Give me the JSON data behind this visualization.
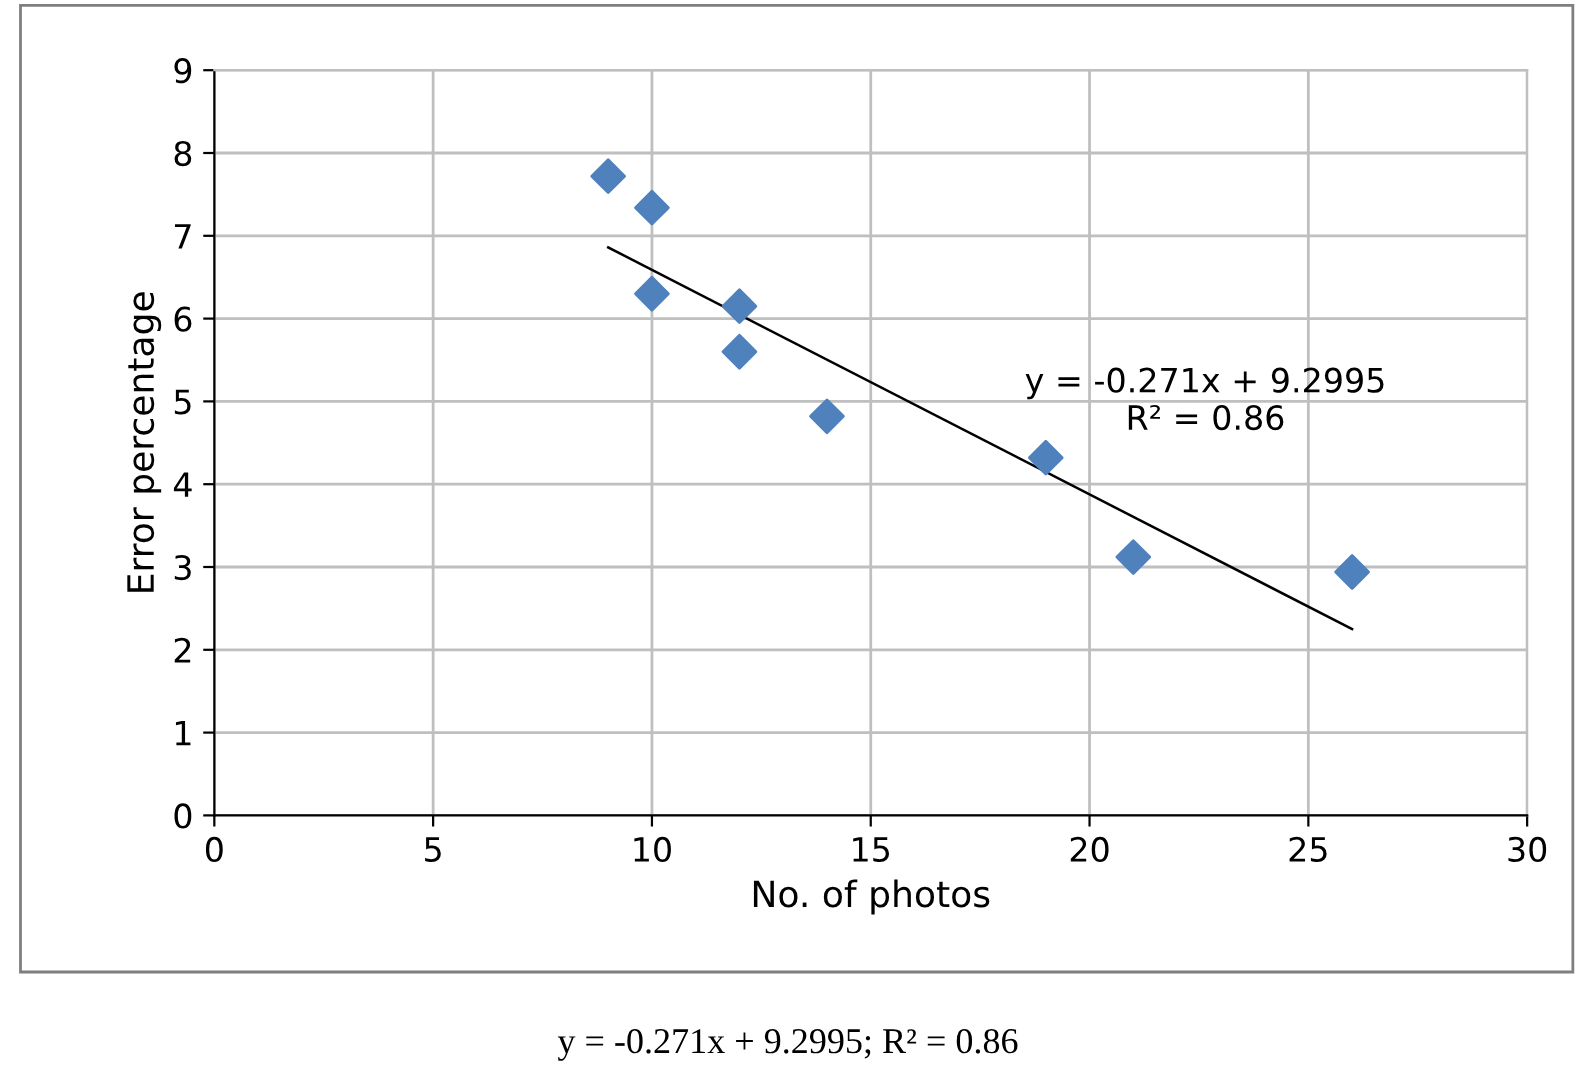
{
  "chart_data": {
    "type": "scatter",
    "xlabel": "No. of photos",
    "ylabel": "Error percentage",
    "series": [
      {
        "color": "#4f81bd",
        "marker": "diamond",
        "x": [
          9,
          10,
          10,
          12,
          12,
          14,
          19,
          21,
          26
        ],
        "values": [
          7.72,
          7.34,
          6.3,
          6.15,
          5.6,
          4.82,
          4.32,
          3.12,
          2.94
        ]
      },
      {
        "type": "line",
        "color": "#000000",
        "marker": "none",
        "line_style": "solid",
        "x": [
          9,
          26
        ],
        "values": [
          6.86,
          2.25
        ]
      }
    ],
    "xlim": [
      0,
      30
    ],
    "xticks": [
      0,
      5,
      10,
      15,
      20,
      25,
      30
    ],
    "ylim": [
      0,
      9
    ],
    "yticks": [
      0,
      1,
      2,
      3,
      4,
      5,
      6,
      7,
      8,
      9
    ],
    "grid": true,
    "legend": false,
    "annotations": [
      "y = -0.271x + 9.2995\nR² = 0.86",
      "y = -0.271x + 9.2995; R² = 0.86"
    ]
  }
}
